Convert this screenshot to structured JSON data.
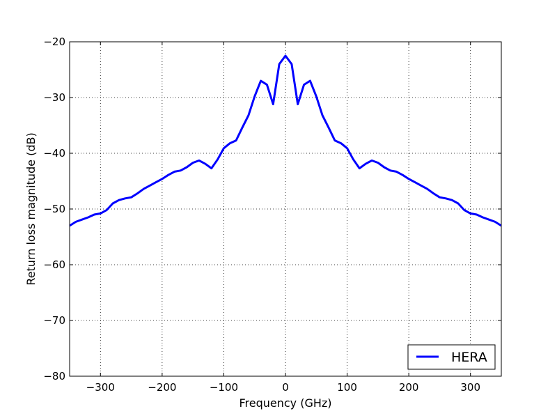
{
  "chart_data": {
    "type": "line",
    "title": "",
    "xlabel": "Frequency (GHz)",
    "ylabel": "Return loss magnitude (dB)",
    "xlim": [
      -350,
      350
    ],
    "ylim": [
      -80,
      -20
    ],
    "x_ticks": [
      -300,
      -200,
      -100,
      0,
      100,
      200,
      300
    ],
    "x_tick_labels": [
      "−300",
      "−200",
      "−100",
      "0",
      "100",
      "200",
      "300"
    ],
    "y_ticks": [
      -80,
      -70,
      -60,
      -50,
      -40,
      -30,
      -20
    ],
    "y_tick_labels": [
      "−80",
      "−70",
      "−60",
      "−50",
      "−40",
      "−30",
      "−20"
    ],
    "grid": true,
    "grid_style": "dotted",
    "legend_position": "lower-right",
    "series": [
      {
        "name": "HERA",
        "color": "#0000ff",
        "x": [
          -350,
          -340,
          -330,
          -320,
          -310,
          -300,
          -290,
          -280,
          -270,
          -260,
          -250,
          -240,
          -230,
          -220,
          -210,
          -200,
          -190,
          -180,
          -170,
          -160,
          -150,
          -140,
          -130,
          -120,
          -110,
          -100,
          -90,
          -80,
          -70,
          -60,
          -50,
          -40,
          -30,
          -20,
          -10,
          0,
          10,
          20,
          30,
          40,
          50,
          60,
          70,
          80,
          90,
          100,
          110,
          120,
          130,
          140,
          150,
          160,
          170,
          180,
          190,
          200,
          210,
          220,
          230,
          240,
          250,
          260,
          270,
          280,
          290,
          300,
          310,
          320,
          330,
          340,
          350
        ],
        "y": [
          -53.0,
          -52.3,
          -51.9,
          -51.5,
          -51.0,
          -50.8,
          -50.2,
          -49.0,
          -48.4,
          -48.1,
          -47.9,
          -47.2,
          -46.4,
          -45.8,
          -45.2,
          -44.6,
          -43.9,
          -43.3,
          -43.1,
          -42.5,
          -41.7,
          -41.3,
          -41.9,
          -42.7,
          -41.1,
          -39.1,
          -38.2,
          -37.7,
          -35.4,
          -33.2,
          -29.8,
          -27.0,
          -27.7,
          -31.2,
          -24.0,
          -22.5,
          -24.0,
          -31.2,
          -27.7,
          -27.0,
          -29.8,
          -33.2,
          -35.4,
          -37.7,
          -38.2,
          -39.1,
          -41.1,
          -42.7,
          -41.9,
          -41.3,
          -41.7,
          -42.5,
          -43.1,
          -43.3,
          -43.9,
          -44.6,
          -45.2,
          -45.8,
          -46.4,
          -47.2,
          -47.9,
          -48.1,
          -48.4,
          -49.0,
          -50.2,
          -50.8,
          -51.0,
          -51.5,
          -51.9,
          -52.3,
          -53.0
        ]
      }
    ]
  }
}
